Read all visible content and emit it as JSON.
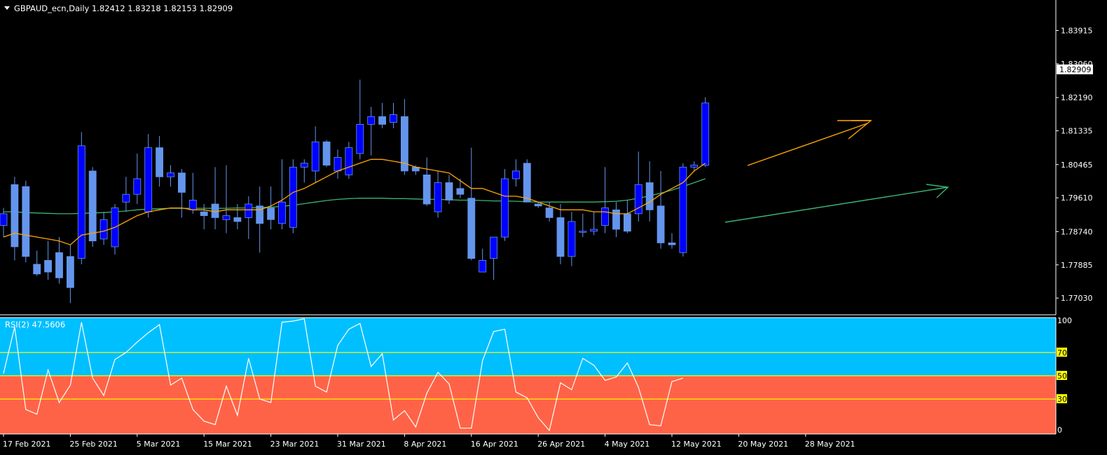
{
  "header": {
    "symbol_line": "GBPAUD_ecn,Daily  1.82412 1.83218 1.82153 1.82909"
  },
  "colors": {
    "background": "#000000",
    "frame": "#ffffff",
    "bull_candle": "#0000ff",
    "bear_candle": "#6495ed",
    "wick": "#6495ed",
    "ma_fast": "#ffa500",
    "ma_slow": "#3cb371",
    "rsi_upper_zone": "#00bfff",
    "rsi_lower_zone": "#ff6347",
    "rsi_line": "#ffffff",
    "rsi_levels": "#ffff00"
  },
  "chart_data": [
    {
      "type": "candlestick",
      "symbol": "GBPAUD_ecn",
      "timeframe": "Daily",
      "last": {
        "open": 1.82412,
        "high": 1.83218,
        "low": 1.82153,
        "close": 1.82909
      },
      "current_price_label": "1.82909",
      "ylim": [
        1.766,
        1.847
      ],
      "y_ticks": [
        1.83915,
        1.8306,
        1.8219,
        1.81335,
        1.80465,
        1.7961,
        1.7874,
        1.77885,
        1.7703
      ],
      "y_tick_labels": [
        "1.83915",
        "1.83060",
        "1.82190",
        "1.81335",
        "1.80465",
        "1.79610",
        "1.78740",
        "1.77885",
        "1.77030"
      ],
      "x_tick_labels": [
        {
          "index": 0,
          "label": "17 Feb 2021"
        },
        {
          "index": 6,
          "label": "25 Feb 2021"
        },
        {
          "index": 12,
          "label": "5 Mar 2021"
        },
        {
          "index": 18,
          "label": "15 Mar 2021"
        },
        {
          "index": 24,
          "label": "23 Mar 2021"
        },
        {
          "index": 30,
          "label": "31 Mar 2021"
        },
        {
          "index": 36,
          "label": "8 Apr 2021"
        },
        {
          "index": 42,
          "label": "16 Apr 2021"
        },
        {
          "index": 48,
          "label": "26 Apr 2021"
        },
        {
          "index": 54,
          "label": "4 May 2021"
        },
        {
          "index": 60,
          "label": "12 May 2021"
        },
        {
          "index": 66,
          "label": "20 May 2021"
        },
        {
          "index": 72,
          "label": "28 May 2021"
        }
      ],
      "ohlc": [
        [
          1.789,
          1.7935,
          1.786,
          1.792
        ],
        [
          1.7995,
          1.8015,
          1.78,
          1.7835
        ],
        [
          1.799,
          1.8005,
          1.7795,
          1.781
        ],
        [
          1.779,
          1.7825,
          1.776,
          1.7765
        ],
        [
          1.78,
          1.785,
          1.775,
          1.777
        ],
        [
          1.782,
          1.786,
          1.774,
          1.7755
        ],
        [
          1.781,
          1.784,
          1.769,
          1.773
        ],
        [
          1.7805,
          1.813,
          1.779,
          1.8095
        ],
        [
          1.803,
          1.804,
          1.7835,
          1.785
        ],
        [
          1.7855,
          1.7925,
          1.784,
          1.7905
        ],
        [
          1.7835,
          1.7945,
          1.7815,
          1.7935
        ],
        [
          1.795,
          1.8015,
          1.7925,
          1.797
        ],
        [
          1.797,
          1.8075,
          1.7945,
          1.801
        ],
        [
          1.7925,
          1.8125,
          1.791,
          1.809
        ],
        [
          1.809,
          1.812,
          1.799,
          1.8015
        ],
        [
          1.8015,
          1.8045,
          1.799,
          1.8025
        ],
        [
          1.8025,
          1.8035,
          1.791,
          1.7975
        ],
        [
          1.793,
          1.8025,
          1.792,
          1.7955
        ],
        [
          1.7925,
          1.7945,
          1.788,
          1.7915
        ],
        [
          1.7945,
          1.804,
          1.788,
          1.791
        ],
        [
          1.7905,
          1.8045,
          1.787,
          1.7915
        ],
        [
          1.791,
          1.7945,
          1.788,
          1.79
        ],
        [
          1.791,
          1.7965,
          1.7855,
          1.7945
        ],
        [
          1.794,
          1.799,
          1.782,
          1.7895
        ],
        [
          1.7935,
          1.799,
          1.788,
          1.7905
        ],
        [
          1.7895,
          1.806,
          1.788,
          1.795
        ],
        [
          1.7885,
          1.806,
          1.787,
          1.804
        ],
        [
          1.804,
          1.806,
          1.8,
          1.805
        ],
        [
          1.803,
          1.8145,
          1.8,
          1.8105
        ],
        [
          1.8105,
          1.811,
          1.804,
          1.8045
        ],
        [
          1.803,
          1.8085,
          1.801,
          1.8065
        ],
        [
          1.802,
          1.8105,
          1.801,
          1.809
        ],
        [
          1.8075,
          1.8265,
          1.806,
          1.815
        ],
        [
          1.815,
          1.8195,
          1.807,
          1.817
        ],
        [
          1.817,
          1.8205,
          1.814,
          1.815
        ],
        [
          1.8155,
          1.8205,
          1.814,
          1.8175
        ],
        [
          1.817,
          1.8215,
          1.802,
          1.803
        ],
        [
          1.804,
          1.8045,
          1.802,
          1.803
        ],
        [
          1.802,
          1.8065,
          1.794,
          1.7945
        ],
        [
          1.7925,
          1.803,
          1.791,
          1.8
        ],
        [
          1.8,
          1.802,
          1.7945,
          1.7955
        ],
        [
          1.7985,
          1.801,
          1.796,
          1.797
        ],
        [
          1.796,
          1.809,
          1.78,
          1.7805
        ],
        [
          1.777,
          1.783,
          1.777,
          1.78
        ],
        [
          1.7805,
          1.786,
          1.775,
          1.786
        ],
        [
          1.786,
          1.8035,
          1.785,
          1.801
        ],
        [
          1.801,
          1.806,
          1.799,
          1.803
        ],
        [
          1.805,
          1.806,
          1.795,
          1.795
        ],
        [
          1.7945,
          1.795,
          1.7935,
          1.794
        ],
        [
          1.7935,
          1.795,
          1.79,
          1.791
        ],
        [
          1.791,
          1.7945,
          1.779,
          1.781
        ],
        [
          1.781,
          1.7925,
          1.7785,
          1.79
        ],
        [
          1.7875,
          1.792,
          1.786,
          1.7875
        ],
        [
          1.7875,
          1.7925,
          1.7865,
          1.788
        ],
        [
          1.789,
          1.804,
          1.787,
          1.7935
        ],
        [
          1.793,
          1.795,
          1.786,
          1.788
        ],
        [
          1.792,
          1.7955,
          1.787,
          1.7875
        ],
        [
          1.792,
          1.808,
          1.79,
          1.7995
        ],
        [
          1.8,
          1.8055,
          1.79,
          1.793
        ],
        [
          1.794,
          1.803,
          1.783,
          1.7845
        ],
        [
          1.7845,
          1.787,
          1.783,
          1.784
        ],
        [
          1.782,
          1.805,
          1.781,
          1.804
        ],
        [
          1.804,
          1.8055,
          1.803,
          1.8045
        ],
        [
          1.8045,
          1.822,
          1.804,
          1.8205
        ]
      ],
      "ma_fast": [
        1.786,
        1.787,
        1.7865,
        1.786,
        1.7855,
        1.785,
        1.784,
        1.7865,
        1.787,
        1.7875,
        1.7885,
        1.79,
        1.7915,
        1.7925,
        1.793,
        1.7935,
        1.7935,
        1.793,
        1.793,
        1.7925,
        1.793,
        1.793,
        1.793,
        1.793,
        1.794,
        1.7955,
        1.7975,
        1.7985,
        1.8,
        1.8015,
        1.803,
        1.804,
        1.805,
        1.806,
        1.806,
        1.8055,
        1.805,
        1.804,
        1.8035,
        1.803,
        1.8025,
        1.8005,
        1.7985,
        1.7985,
        1.7975,
        1.7965,
        1.7965,
        1.796,
        1.795,
        1.794,
        1.793,
        1.793,
        1.793,
        1.7925,
        1.7925,
        1.792,
        1.792,
        1.7935,
        1.795,
        1.797,
        1.7985,
        1.8,
        1.803,
        1.805
      ],
      "ma_slow": [
        1.7925,
        1.7925,
        1.7923,
        1.7922,
        1.7921,
        1.792,
        1.792,
        1.7921,
        1.7922,
        1.7923,
        1.7925,
        1.7927,
        1.793,
        1.7932,
        1.7933,
        1.7934,
        1.7934,
        1.7934,
        1.7934,
        1.7934,
        1.7934,
        1.7935,
        1.7935,
        1.7936,
        1.7937,
        1.7939,
        1.7942,
        1.7946,
        1.795,
        1.7954,
        1.7957,
        1.7959,
        1.796,
        1.796,
        1.796,
        1.7959,
        1.7959,
        1.7958,
        1.7957,
        1.7957,
        1.7956,
        1.7955,
        1.7955,
        1.7954,
        1.7953,
        1.7953,
        1.7952,
        1.7951,
        1.795,
        1.795,
        1.795,
        1.795,
        1.795,
        1.795,
        1.7951,
        1.7952,
        1.7955,
        1.796,
        1.7966,
        1.7973,
        1.7981,
        1.799,
        1.8,
        1.801
      ]
    },
    {
      "type": "line",
      "title": "RSI(2) 47.5606",
      "ylim": [
        0,
        100
      ],
      "levels": [
        30,
        50,
        70
      ],
      "right_labels": [
        "100",
        "70",
        "50",
        "30",
        "0"
      ],
      "values": [
        52,
        92,
        21,
        17,
        55,
        27,
        42,
        96,
        48,
        33,
        64,
        70,
        79,
        87,
        94,
        42,
        48,
        21,
        11,
        8,
        41,
        16,
        65,
        30,
        27,
        96,
        97,
        99,
        41,
        36,
        76,
        90,
        95,
        58,
        69,
        12,
        20,
        6,
        35,
        53,
        43,
        5,
        5,
        63,
        88,
        90,
        36,
        31,
        14,
        3,
        44,
        38,
        65,
        59,
        46,
        49,
        61,
        40,
        8,
        7,
        45,
        48
      ]
    }
  ]
}
